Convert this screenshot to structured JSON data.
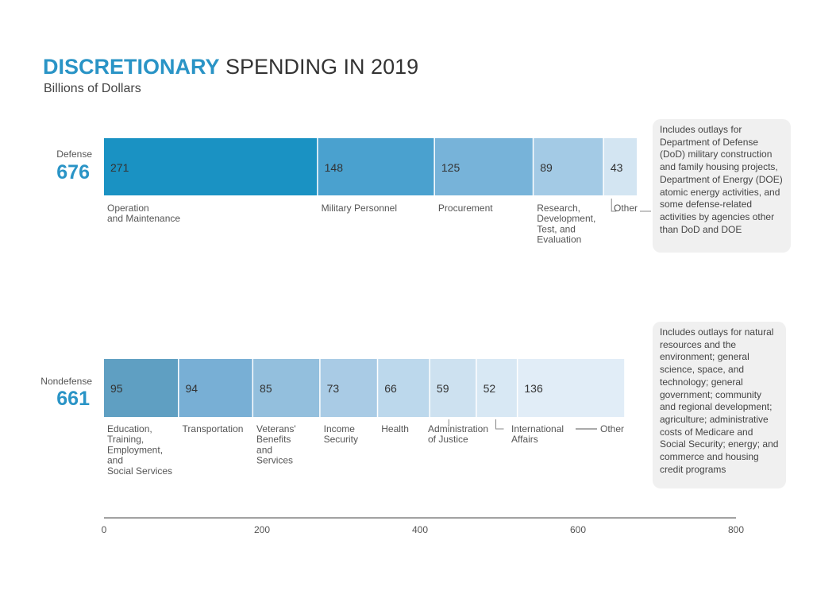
{
  "title": {
    "highlight": "DISCRETIONARY",
    "rest": "SPENDING IN 2019"
  },
  "subtitle": "Billions of Dollars",
  "notes": {
    "defense": "Includes outlays for Department of Defense (DoD) military construction and family housing projects, Department of Energy (DOE) atomic energy activities, and some defense-related activities by agencies other than DoD and DOE",
    "nondefense": "Includes outlays for natural resources and the environment; general science, space, and technology; general government; community and regional development; agriculture; administrative costs of Medicare and Social Security; energy; and commerce and housing credit programs"
  },
  "chart_data": {
    "type": "bar",
    "orientation": "horizontal-stacked",
    "title": "DISCRETIONARY SPENDING IN 2019",
    "subtitle": "Billions of Dollars",
    "xlim": [
      0,
      800
    ],
    "x_ticks": [
      0,
      200,
      400,
      600,
      800
    ],
    "series": [
      {
        "name": "Defense",
        "total": 676,
        "segments": [
          {
            "value": 271,
            "label": "Operation and Maintenance",
            "color": "#1a92c3"
          },
          {
            "value": 148,
            "label": "Military Personnel",
            "color": "#4aa1cf"
          },
          {
            "value": 125,
            "label": "Procurement",
            "color": "#77b3d9"
          },
          {
            "value": 89,
            "label": "Research, Development, Test, and Evaluation",
            "color": "#a3cae5"
          },
          {
            "value": 43,
            "label": "Other",
            "color": "#d3e5f2"
          }
        ]
      },
      {
        "name": "Nondefense",
        "total": 661,
        "segments": [
          {
            "value": 95,
            "label": "Education, Training, Employment, and Social Services",
            "color": "#5f9fc2"
          },
          {
            "value": 94,
            "label": "Transportation",
            "color": "#78afd5"
          },
          {
            "value": 85,
            "label": "Veterans' Benefits and Services",
            "color": "#93bfdd"
          },
          {
            "value": 73,
            "label": "Income Security",
            "color": "#a9cbe5"
          },
          {
            "value": 66,
            "label": "Health",
            "color": "#bcd8ec"
          },
          {
            "value": 59,
            "label": "Administration of Justice",
            "color": "#cde1f0"
          },
          {
            "value": 52,
            "label": "International Affairs",
            "color": "#d8e8f4"
          },
          {
            "value": 136,
            "label": "Other",
            "color": "#e1edf7"
          }
        ]
      }
    ]
  }
}
